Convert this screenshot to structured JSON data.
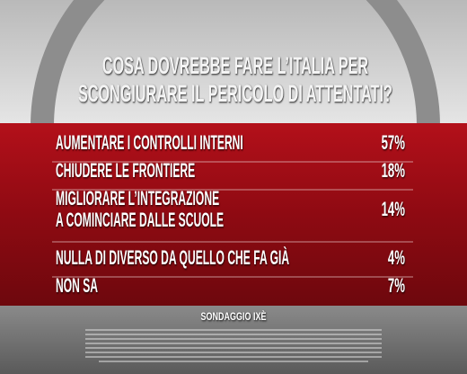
{
  "header": {
    "title": [
      "COSA DOVREBBE FARE L’ITALIA PER",
      "SCONGIURARE IL PERICOLO DI ATTENTATI?"
    ]
  },
  "rows": [
    {
      "label": [
        "AUMENTARE I CONTROLLI INTERNI"
      ],
      "value": "57%"
    },
    {
      "label": [
        "CHIUDERE LE FRONTIERE"
      ],
      "value": "18%"
    },
    {
      "label": [
        "MIGLIORARE L’INTEGRAZIONE",
        "A COMINCIARE DALLE SCUOLE"
      ],
      "value": "14%"
    },
    {
      "label": [
        "NULLA DI DIVERSO DA QUELLO CHE FA GIÀ"
      ],
      "value": "4%"
    },
    {
      "label": [
        "NON SA"
      ],
      "value": "7%"
    }
  ],
  "footer": {
    "source": "SONDAGGIO IXÈ"
  }
}
